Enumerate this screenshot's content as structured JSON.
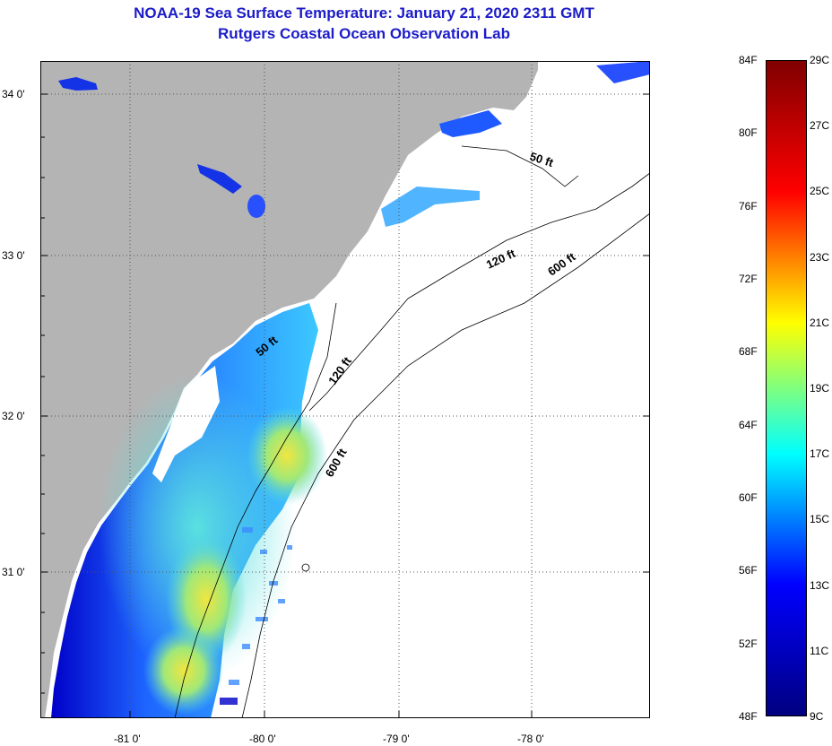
{
  "title": "NOAA-19 Sea Surface Temperature:  January 21, 2020 2311 GMT",
  "subtitle": "Rutgers Coastal Ocean Observation Lab",
  "map": {
    "lat_labels": [
      "34 0'",
      "33 0'",
      "32 0'",
      "31 0'"
    ],
    "lon_labels": [
      "-81 0'",
      "-80 0'",
      "-79 0'",
      "-78 0'"
    ],
    "contour_labels": [
      "50 ft",
      "120 ft",
      "600 ft",
      "50 ft",
      "120 ft",
      "600 ft"
    ],
    "colors": {
      "land": "#b4b4b4",
      "ocean_nodata": "#ffffff",
      "contour": "#000000"
    }
  },
  "colorbar": {
    "fahrenheit": [
      "84F",
      "80F",
      "76F",
      "72F",
      "68F",
      "64F",
      "60F",
      "56F",
      "52F",
      "48F"
    ],
    "celsius": [
      "29C",
      "27C",
      "25C",
      "23C",
      "21C",
      "19C",
      "17C",
      "15C",
      "13C",
      "11C",
      "9C"
    ],
    "colormap": [
      "#000080",
      "#0000ff",
      "#00ffff",
      "#ffff00",
      "#ff0000",
      "#800000"
    ]
  }
}
